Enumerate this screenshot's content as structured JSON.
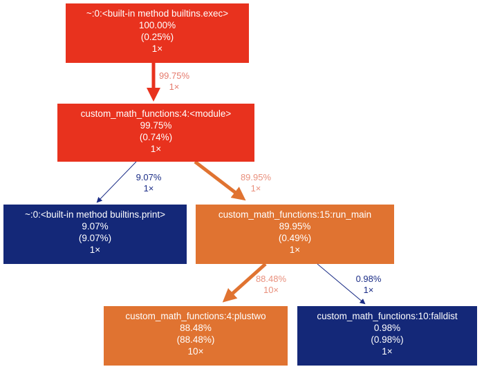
{
  "colors": {
    "red": "#e8321e",
    "orange": "#e07331",
    "navy": "#142878",
    "edge_red": "#e8321e",
    "edge_orange": "#e07331",
    "edge_navy": "#1a2c86",
    "label_red": "#e57a6c",
    "label_orange": "#e9907d",
    "label_navy": "#1a2c86"
  },
  "nodes": {
    "exec": {
      "name": "~:0:<built-in method builtins.exec>",
      "total": "100.00%",
      "self": "(0.25%)",
      "calls": "1×",
      "color": "red"
    },
    "module": {
      "name": "custom_math_functions:4:<module>",
      "total": "99.75%",
      "self": "(0.74%)",
      "calls": "1×",
      "color": "red"
    },
    "print": {
      "name": "~:0:<built-in method builtins.print>",
      "total": "9.07%",
      "self": "(9.07%)",
      "calls": "1×",
      "color": "navy"
    },
    "run_main": {
      "name": "custom_math_functions:15:run_main",
      "total": "89.95%",
      "self": "(0.49%)",
      "calls": "1×",
      "color": "orange"
    },
    "plustwo": {
      "name": "custom_math_functions:4:plustwo",
      "total": "88.48%",
      "self": "(88.48%)",
      "calls": "10×",
      "color": "orange"
    },
    "falldist": {
      "name": "custom_math_functions:10:falldist",
      "total": "0.98%",
      "self": "(0.98%)",
      "calls": "1×",
      "color": "navy"
    }
  },
  "edges": [
    {
      "from": "exec",
      "to": "module",
      "percent": "99.75%",
      "calls": "1×",
      "color": "red"
    },
    {
      "from": "module",
      "to": "print",
      "percent": "9.07%",
      "calls": "1×",
      "color": "navy"
    },
    {
      "from": "module",
      "to": "run_main",
      "percent": "89.95%",
      "calls": "1×",
      "color": "orange"
    },
    {
      "from": "run_main",
      "to": "plustwo",
      "percent": "88.48%",
      "calls": "10×",
      "color": "orange"
    },
    {
      "from": "run_main",
      "to": "falldist",
      "percent": "0.98%",
      "calls": "1×",
      "color": "navy"
    }
  ]
}
